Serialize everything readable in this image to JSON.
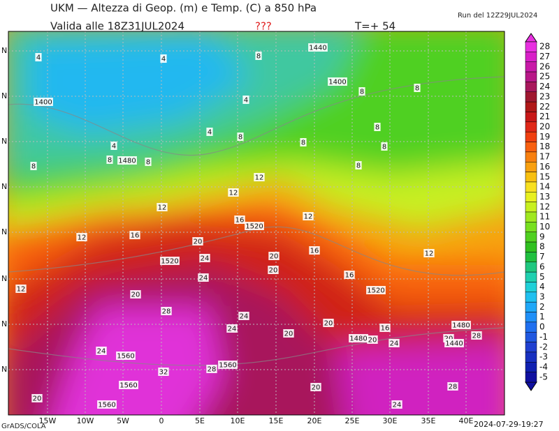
{
  "header": {
    "title": "UKM — Altezza di Geop. (m) e Temp. (C) a 850 hPa",
    "valid": "Valida alle 18Z31JUL2024",
    "flag": "???",
    "forecast": "T=+ 54",
    "run": "Run del 12Z29JUL2024"
  },
  "colorbar": {
    "values": [
      28,
      27,
      26,
      25,
      24,
      23,
      22,
      21,
      20,
      19,
      18,
      17,
      16,
      15,
      14,
      13,
      12,
      11,
      10,
      9,
      8,
      7,
      6,
      5,
      4,
      3,
      2,
      1,
      0,
      -1,
      -2,
      -3,
      -4,
      -5
    ],
    "colors": [
      "#e830e0",
      "#d820c8",
      "#c81aa8",
      "#b81888",
      "#a8185c",
      "#a01830",
      "#b01818",
      "#c81818",
      "#e02818",
      "#f04010",
      "#f86010",
      "#f88010",
      "#f8a010",
      "#f8c010",
      "#f8e020",
      "#e8f020",
      "#c8f020",
      "#a0e820",
      "#78e020",
      "#50d020",
      "#30c020",
      "#20c040",
      "#20c880",
      "#20d0b0",
      "#20d0d8",
      "#20c0f0",
      "#20a8f8",
      "#2090f8",
      "#2070f0",
      "#2058e0",
      "#2040d0",
      "#1830c0",
      "#1020b0",
      "#1010a0"
    ]
  },
  "map": {
    "lon_labels": [
      "15W",
      "10W",
      "5W",
      "0",
      "5E",
      "10E",
      "15E",
      "20E",
      "25E",
      "30E",
      "35E",
      "40E"
    ],
    "lat_labels": [
      "N",
      "N",
      "N",
      "N",
      "N",
      "N",
      "N",
      "N"
    ],
    "contour_labels": [
      "4",
      "4",
      "8",
      "1440",
      "1400",
      "1400",
      "8",
      "8",
      "4",
      "4",
      "8",
      "8",
      "8",
      "8",
      "4",
      "8",
      "1480",
      "8",
      "8",
      "8",
      "12",
      "12",
      "12",
      "12",
      "16",
      "1520",
      "12",
      "16",
      "20",
      "16",
      "12",
      "1520",
      "24",
      "20",
      "20",
      "24",
      "16",
      "12",
      "20",
      "1520",
      "28",
      "24",
      "20",
      "16",
      "1480",
      "24",
      "20",
      "20",
      "28",
      "1480",
      "20",
      "24",
      "1440",
      "24",
      "1560",
      "32",
      "28",
      "1560",
      "1560",
      "20",
      "28",
      "20",
      "1560",
      "24"
    ]
  },
  "footer": {
    "source": "GrADS/COLA",
    "timestamp": "2024-07-29-19:27"
  }
}
